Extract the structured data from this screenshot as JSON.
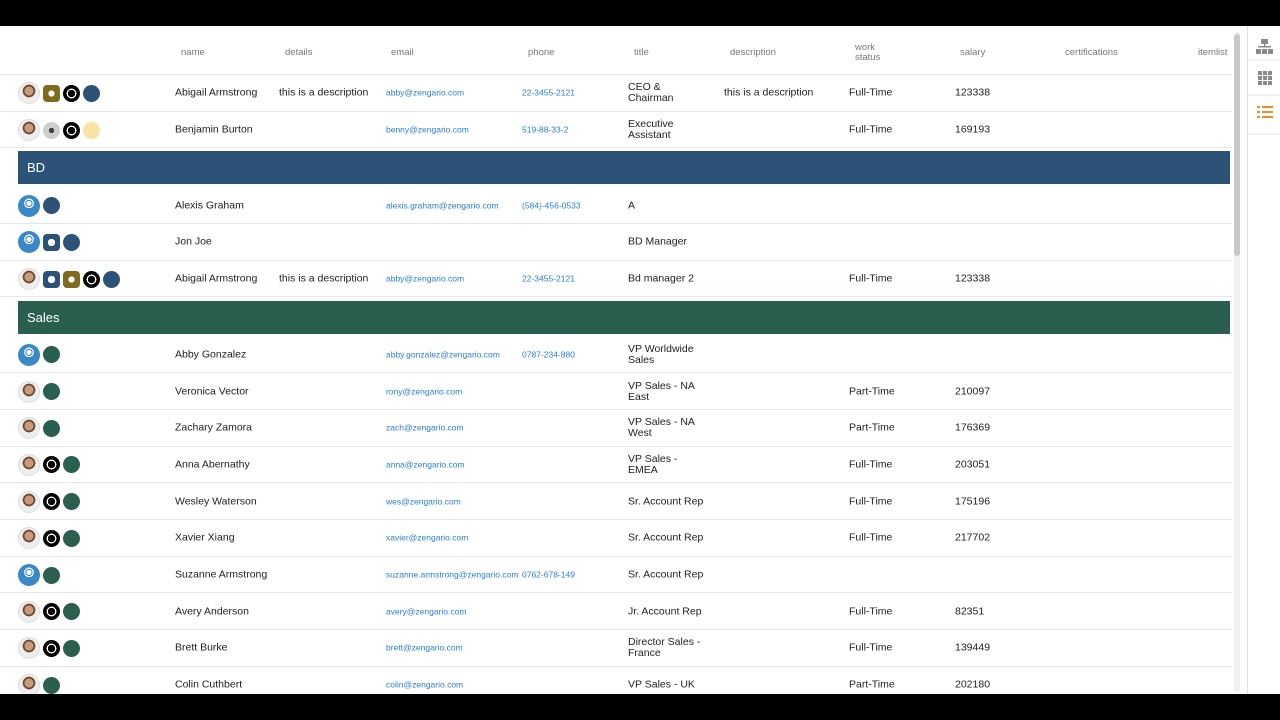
{
  "table": {
    "columns": {
      "name": "name",
      "details": "details",
      "email": "email",
      "phone": "phone",
      "title": "title",
      "description": "description",
      "work_status": "work status",
      "salary": "salary",
      "certifications": "certifications",
      "itemlist": "itemlist"
    },
    "top_rows": [
      {
        "name": "Abigail Armstrong",
        "details": "this is a description",
        "email": "abby@zengario.com",
        "phone": "22-3455-2121",
        "title": "CEO & Chairman",
        "description": "this is a description",
        "work_status": "Full-Time",
        "salary": "123338"
      },
      {
        "name": "Benjamin Burton",
        "email": "benny@zengario.com",
        "phone": "519-88-33-2",
        "title": "Executive Assistant",
        "work_status": "Full-Time",
        "salary": "169193"
      }
    ],
    "groups": [
      {
        "label": "BD",
        "rows": [
          {
            "name": "Alexis Graham",
            "email": "alexis.graham@zengario.com",
            "phone": "(584)-456-0533",
            "title": "A"
          },
          {
            "name": "Jon Joe",
            "title": "BD Manager"
          },
          {
            "name": "Abigail Armstrong",
            "details": "this is a description",
            "email": "abby@zengario.com",
            "phone": "22-3455-2121",
            "title": "Bd manager 2",
            "work_status": "Full-Time",
            "salary": "123338"
          }
        ]
      },
      {
        "label": "Sales",
        "rows": [
          {
            "name": "Abby Gonzalez",
            "email": "abby.gonzalez@zengario.com",
            "phone": "0787-234-880",
            "title": "VP Worldwide Sales"
          },
          {
            "name": "Veronica Vector",
            "email": "rony@zengario.com",
            "title": "VP Sales - NA East",
            "work_status": "Part-Time",
            "salary": "210097"
          },
          {
            "name": "Zachary Zamora",
            "email": "zach@zengario.com",
            "title": "VP Sales - NA West",
            "work_status": "Part-Time",
            "salary": "176369"
          },
          {
            "name": "Anna Abernathy",
            "email": "anna@zengario.com",
            "title": "VP Sales - EMEA",
            "work_status": "Full-Time",
            "salary": "203051"
          },
          {
            "name": "Wesley Waterson",
            "email": "wes@zengario.com",
            "title": "Sr. Account Rep",
            "work_status": "Full-Time",
            "salary": "175196"
          },
          {
            "name": "Xavier Xiang",
            "email": "xavier@zengario.com",
            "title": "Sr. Account Rep",
            "work_status": "Full-Time",
            "salary": "217702"
          },
          {
            "name": "Suzanne Armstrong",
            "email": "suzanne.armstrong@zengario.com",
            "phone": "0762-678-149",
            "title": "Sr. Account Rep"
          },
          {
            "name": "Avery Anderson",
            "email": "avery@zengario.com",
            "title": "Jr. Account Rep",
            "work_status": "Full-Time",
            "salary": "82351"
          },
          {
            "name": "Brett Burke",
            "email": "brett@zengario.com",
            "title": "Director Sales - France",
            "work_status": "Full-Time",
            "salary": "139449"
          },
          {
            "name": "Colin Cuthbert",
            "email": "colin@zengario.com",
            "title": "VP Sales - UK",
            "work_status": "Part-Time",
            "salary": "202180"
          }
        ]
      }
    ]
  }
}
